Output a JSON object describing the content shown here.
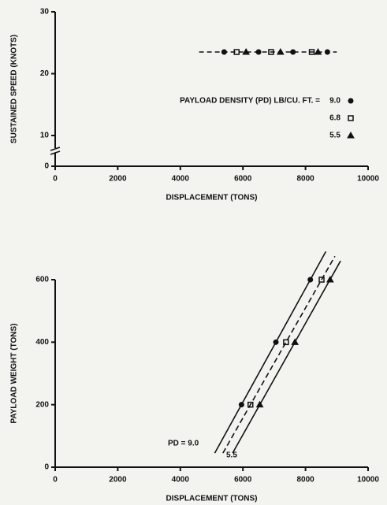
{
  "chart_data": [
    {
      "type": "scatter",
      "ylabel": "SUSTAINED SPEED (KNOTS)",
      "xlabel": "DISPLACEMENT (TONS)",
      "legend_title": "PAYLOAD DENSITY (PD) LB/CU. FT. =",
      "xlim": [
        0,
        10000
      ],
      "xticks": [
        0,
        2000,
        4000,
        6000,
        8000,
        10000
      ],
      "ylim": [
        0,
        30
      ],
      "yticks": [
        0,
        10,
        20,
        30
      ],
      "y_axis_break": true,
      "trend_line": {
        "x": [
          4600,
          9000
        ],
        "values": [
          23.5,
          23.5
        ],
        "dashed": true
      },
      "series": [
        {
          "name": "9.0",
          "marker": "circle",
          "color": "#111",
          "x": [
            5400,
            6500,
            7600,
            8700
          ],
          "values": [
            23.5,
            23.5,
            23.5,
            23.5
          ]
        },
        {
          "name": "6.8",
          "marker": "square",
          "color": "#111",
          "x": [
            5800,
            6900,
            8200
          ],
          "values": [
            23.5,
            23.5,
            23.5
          ]
        },
        {
          "name": "5.5",
          "marker": "triangle",
          "color": "#111",
          "x": [
            6100,
            7200,
            8400
          ],
          "values": [
            23.5,
            23.5,
            23.5
          ]
        }
      ]
    },
    {
      "type": "line",
      "ylabel": "PAYLOAD WEIGHT (TONS)",
      "xlabel": "DISPLACEMENT (TONS)",
      "xlim": [
        0,
        10000
      ],
      "xticks": [
        0,
        2000,
        4000,
        6000,
        8000,
        10000
      ],
      "ylim": [
        0,
        600
      ],
      "yticks": [
        0,
        200,
        400,
        600
      ],
      "annotations": [
        "PD = 9.0",
        "5.5"
      ],
      "series": [
        {
          "name": "9.0",
          "marker": "circle",
          "dashed": false,
          "color": "#111",
          "x": [
            5100,
            8650
          ],
          "values": [
            45,
            690
          ],
          "markers": {
            "x": [
              5953,
              7054,
              8154
            ],
            "values": [
              200,
              400,
              600
            ]
          }
        },
        {
          "name": "6.8",
          "marker": "square",
          "dashed": true,
          "color": "#111",
          "x": [
            5360,
            8940
          ],
          "values": [
            45,
            675
          ],
          "markers": {
            "x": [
              6241,
              7377,
              8514
            ],
            "values": [
              200,
              400,
              600
            ]
          }
        },
        {
          "name": "5.5",
          "marker": "triangle",
          "dashed": false,
          "color": "#111",
          "x": [
            5670,
            9120
          ],
          "values": [
            45,
            660
          ],
          "markers": {
            "x": [
              6540,
              7663,
              8787
            ],
            "values": [
              200,
              400,
              600
            ]
          }
        }
      ]
    }
  ]
}
